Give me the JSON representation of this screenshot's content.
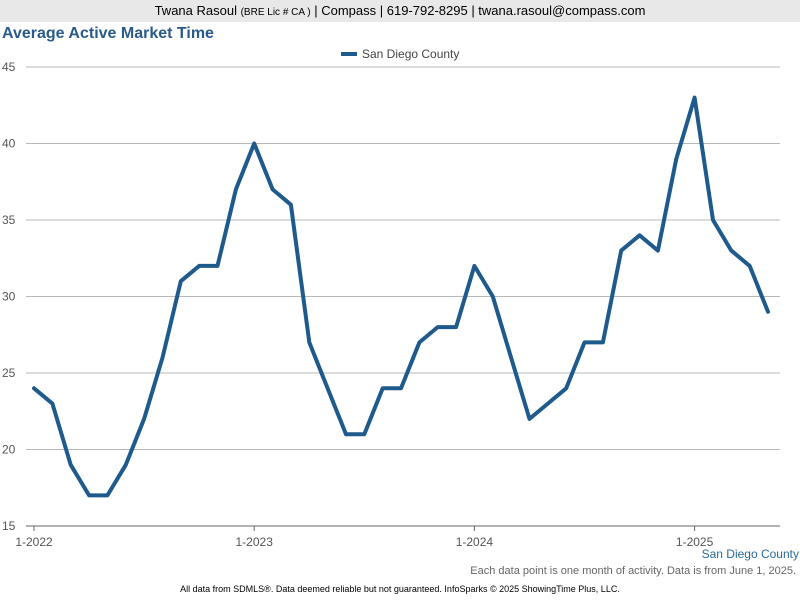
{
  "header": {
    "name": "Twana Rasoul",
    "license": "(BRE Lic # CA )",
    "rest": "| Compass | 619-792-8295 | twana.rasoul@compass.com"
  },
  "chart_data": {
    "type": "line",
    "title": "Average Active Market Time",
    "xlabel": "",
    "ylabel": "",
    "ylim": [
      15,
      45
    ],
    "yticks": [
      15,
      20,
      25,
      30,
      35,
      40,
      45
    ],
    "xticks": [
      "1-2022",
      "1-2023",
      "1-2024",
      "1-2025"
    ],
    "grid": true,
    "legend_position": "top-center",
    "color": "#1f5a8c",
    "series": [
      {
        "name": "San Diego County",
        "x": [
          "2022-01",
          "2022-02",
          "2022-03",
          "2022-04",
          "2022-05",
          "2022-06",
          "2022-07",
          "2022-08",
          "2022-09",
          "2022-10",
          "2022-11",
          "2022-12",
          "2023-01",
          "2023-02",
          "2023-03",
          "2023-04",
          "2023-05",
          "2023-06",
          "2023-07",
          "2023-08",
          "2023-09",
          "2023-10",
          "2023-11",
          "2023-12",
          "2024-01",
          "2024-02",
          "2024-03",
          "2024-04",
          "2024-05",
          "2024-06",
          "2024-07",
          "2024-08",
          "2024-09",
          "2024-10",
          "2024-11",
          "2024-12",
          "2025-01",
          "2025-02",
          "2025-03",
          "2025-04",
          "2025-05"
        ],
        "values": [
          24,
          23,
          19,
          17,
          17,
          19,
          22,
          26,
          31,
          32,
          32,
          37,
          40,
          37,
          36,
          27,
          24,
          21,
          21,
          24,
          24,
          27,
          28,
          28,
          32,
          30,
          26,
          22,
          23,
          24,
          27,
          27,
          33,
          34,
          33,
          39,
          43,
          35,
          33,
          32,
          29
        ]
      }
    ]
  },
  "series_tag": "San Diego County",
  "note": "Each data point is one month of activity. Data is from June 1, 2025.",
  "footer": "All data from SDMLS®. Data deemed reliable but not guaranteed. InfoSparks © 2025 ShowingTime Plus, LLC."
}
